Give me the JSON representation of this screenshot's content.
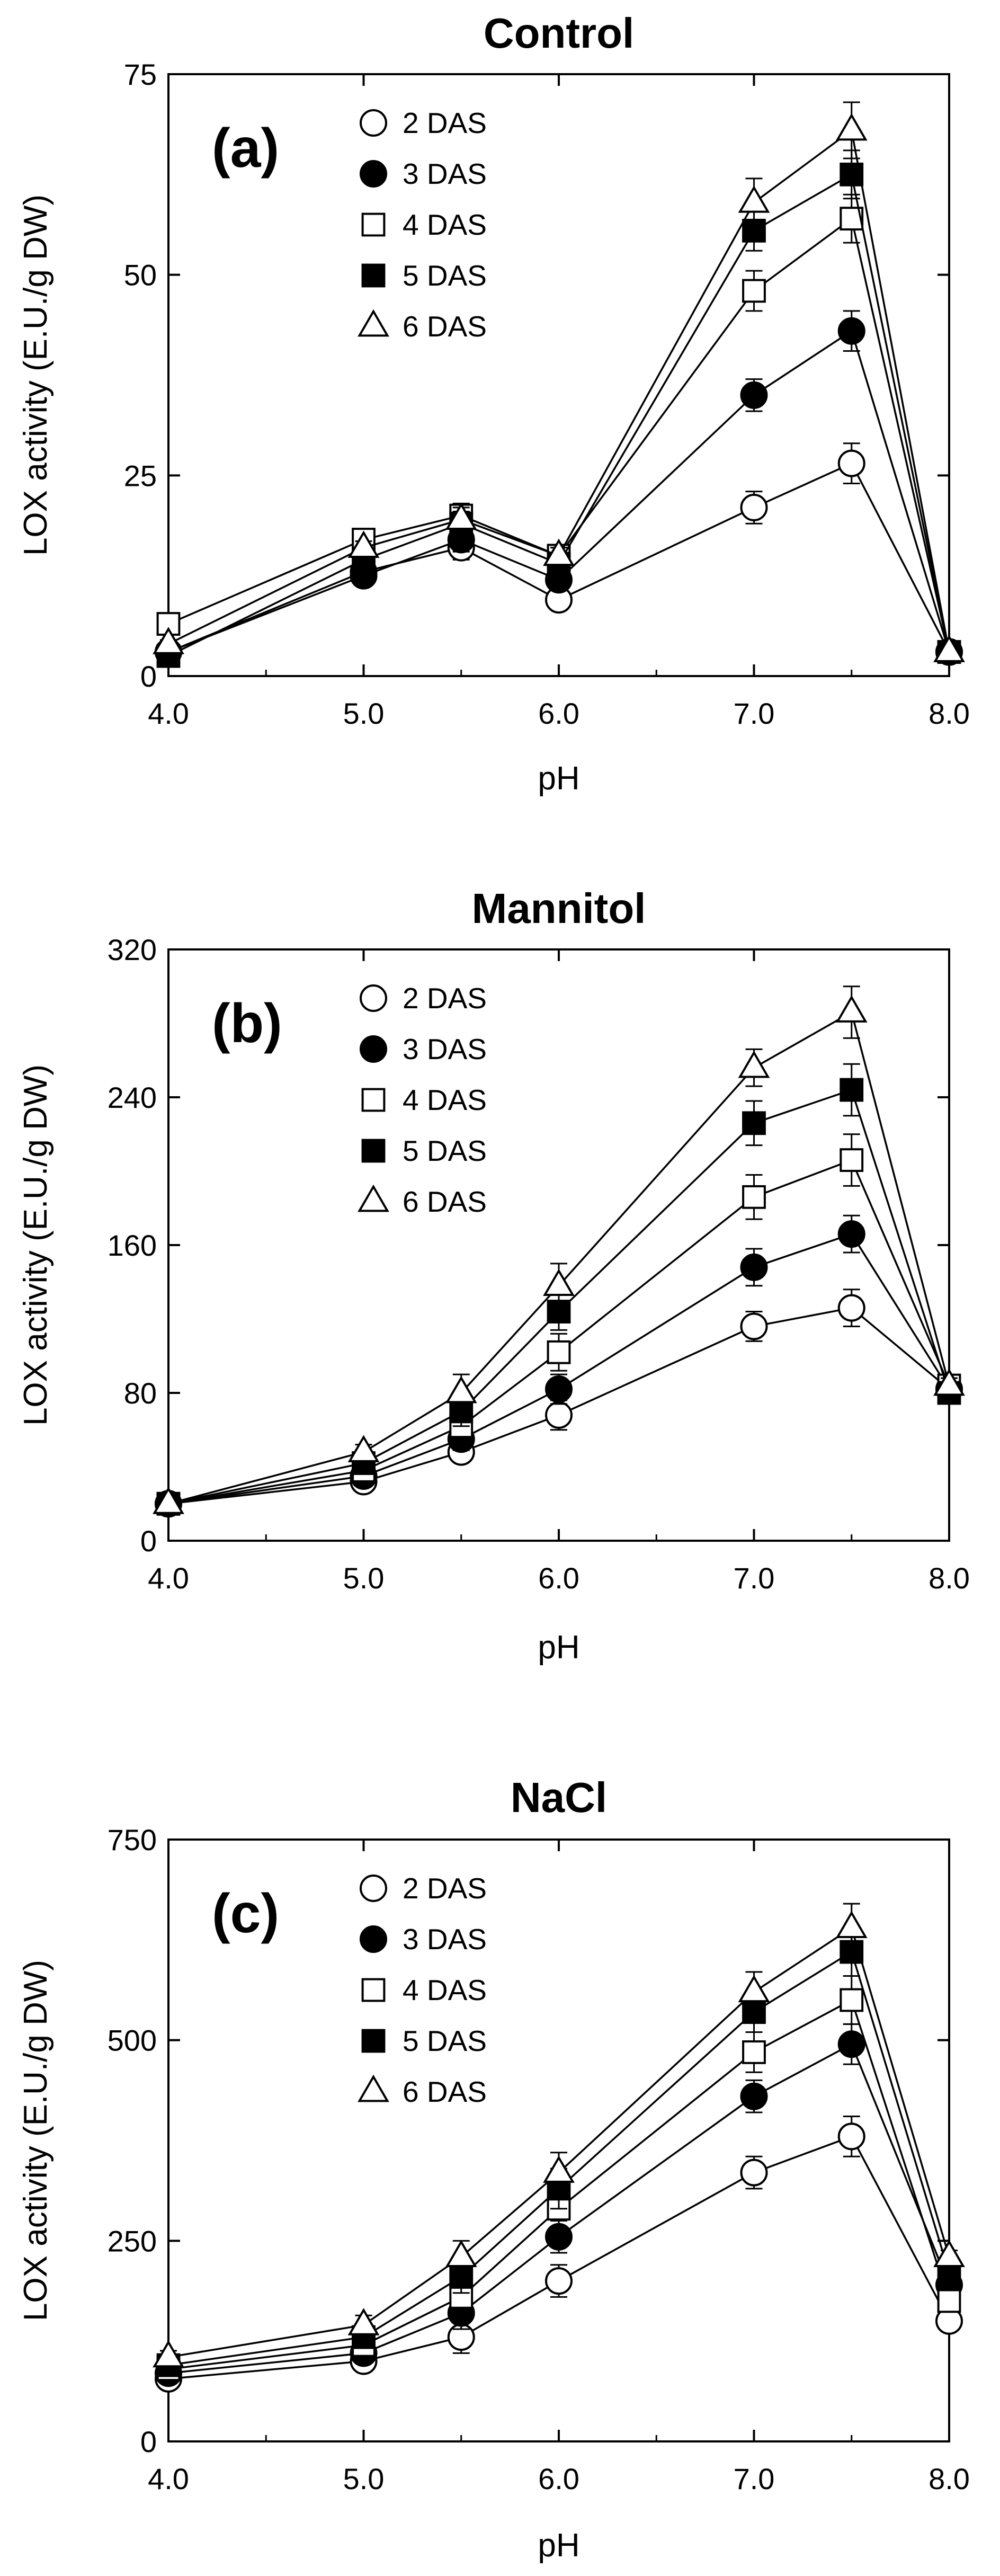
{
  "chart_data": [
    {
      "type": "line",
      "title": "Control",
      "panel_label": "(a)",
      "xlabel": "pH",
      "ylabel": "LOX activity (E.U./g DW)",
      "xlim": [
        4.0,
        8.0
      ],
      "ylim": [
        0,
        75
      ],
      "xticks": [
        4.0,
        5.0,
        6.0,
        7.0,
        8.0
      ],
      "xtick_labels": [
        "4.0",
        "5.0",
        "6.0",
        "7.0",
        "8.0"
      ],
      "yticks": [
        0,
        25,
        50,
        75
      ],
      "ytick_labels": [
        "0",
        "25",
        "50",
        "75"
      ],
      "legend_position": "top-center",
      "x": [
        4.0,
        5.0,
        5.5,
        6.0,
        7.0,
        7.5,
        8.0
      ],
      "series": [
        {
          "name": "2 DAS",
          "marker": "open-circle",
          "values": [
            3,
            13,
            16,
            9.5,
            21,
            26.5,
            3
          ],
          "errors": [
            0.5,
            0.8,
            1.5,
            1,
            2,
            2.5,
            0.5
          ]
        },
        {
          "name": "3 DAS",
          "marker": "filled-circle",
          "values": [
            3,
            12.5,
            17,
            12,
            35,
            43,
            3
          ],
          "errors": [
            0.5,
            0.8,
            1.5,
            1,
            2,
            2.5,
            0.5
          ]
        },
        {
          "name": "4 DAS",
          "marker": "open-square",
          "values": [
            6.5,
            17,
            20,
            15,
            48,
            57,
            3
          ],
          "errors": [
            0.5,
            0.8,
            1.5,
            1,
            2.5,
            3,
            0.5
          ]
        },
        {
          "name": "5 DAS",
          "marker": "filled-square",
          "values": [
            2.5,
            14.5,
            19,
            14,
            55.5,
            62.5,
            3
          ],
          "errors": [
            0.5,
            0.8,
            1.5,
            1,
            2.5,
            3,
            0.5
          ]
        },
        {
          "name": "6 DAS",
          "marker": "open-triangle",
          "values": [
            4,
            16,
            19.5,
            15,
            59,
            68,
            3
          ],
          "errors": [
            0.5,
            0.8,
            1.5,
            1,
            3,
            3.5,
            0.5
          ]
        }
      ]
    },
    {
      "type": "line",
      "title": "Mannitol",
      "panel_label": "(b)",
      "xlabel": "pH",
      "ylabel": "LOX activity (E.U./g DW)",
      "xlim": [
        4.0,
        8.0
      ],
      "ylim": [
        0,
        320
      ],
      "xticks": [
        4.0,
        5.0,
        6.0,
        7.0,
        8.0
      ],
      "xtick_labels": [
        "4.0",
        "5.0",
        "6.0",
        "7.0",
        "8.0"
      ],
      "yticks": [
        0,
        80,
        160,
        240,
        320
      ],
      "ytick_labels": [
        "0",
        "80",
        "160",
        "240",
        "320"
      ],
      "legend_position": "top-center",
      "x": [
        4.0,
        5.0,
        5.5,
        6.0,
        7.0,
        7.5,
        8.0
      ],
      "series": [
        {
          "name": "2 DAS",
          "marker": "open-circle",
          "values": [
            20,
            32,
            48,
            68,
            116,
            126,
            82
          ],
          "errors": [
            2,
            3,
            5,
            8,
            8,
            10,
            4
          ]
        },
        {
          "name": "3 DAS",
          "marker": "filled-circle",
          "values": [
            20,
            35,
            55,
            82,
            148,
            166,
            82
          ],
          "errors": [
            2,
            3,
            6,
            8,
            10,
            10,
            4
          ]
        },
        {
          "name": "4 DAS",
          "marker": "open-square",
          "values": [
            20,
            38,
            62,
            102,
            186,
            206,
            84
          ],
          "errors": [
            2,
            3,
            6,
            10,
            12,
            14,
            4
          ]
        },
        {
          "name": "5 DAS",
          "marker": "filled-square",
          "values": [
            20,
            42,
            70,
            124,
            226,
            244,
            80
          ],
          "errors": [
            2,
            3,
            8,
            10,
            12,
            14,
            4
          ]
        },
        {
          "name": "6 DAS",
          "marker": "open-triangle",
          "values": [
            20,
            48,
            80,
            138,
            256,
            286,
            84
          ],
          "errors": [
            2,
            4,
            10,
            12,
            10,
            14,
            4
          ]
        }
      ]
    },
    {
      "type": "line",
      "title": "NaCl",
      "panel_label": "(c)",
      "xlabel": "pH",
      "ylabel": "LOX activity (E.U./g DW)",
      "xlim": [
        4.0,
        8.0
      ],
      "ylim": [
        0,
        750
      ],
      "xticks": [
        4.0,
        5.0,
        6.0,
        7.0,
        8.0
      ],
      "xtick_labels": [
        "4.0",
        "5.0",
        "6.0",
        "7.0",
        "8.0"
      ],
      "yticks": [
        0,
        250,
        500,
        750
      ],
      "ytick_labels": [
        "0",
        "250",
        "500",
        "750"
      ],
      "legend_position": "top-center",
      "x": [
        4.0,
        5.0,
        5.5,
        6.0,
        7.0,
        7.5,
        8.0
      ],
      "series": [
        {
          "name": "2 DAS",
          "marker": "open-circle",
          "values": [
            78,
            100,
            130,
            200,
            335,
            380,
            150
          ],
          "errors": [
            8,
            12,
            20,
            20,
            20,
            25,
            8
          ]
        },
        {
          "name": "3 DAS",
          "marker": "filled-circle",
          "values": [
            85,
            110,
            160,
            255,
            430,
            495,
            195
          ],
          "errors": [
            8,
            12,
            20,
            20,
            20,
            25,
            8
          ]
        },
        {
          "name": "4 DAS",
          "marker": "open-square",
          "values": [
            90,
            120,
            180,
            290,
            485,
            550,
            175
          ],
          "errors": [
            8,
            12,
            20,
            25,
            25,
            30,
            8
          ]
        },
        {
          "name": "5 DAS",
          "marker": "filled-square",
          "values": [
            95,
            130,
            205,
            315,
            535,
            610,
            210
          ],
          "errors": [
            8,
            12,
            20,
            25,
            25,
            30,
            8
          ]
        },
        {
          "name": "6 DAS",
          "marker": "open-triangle",
          "values": [
            105,
            145,
            230,
            335,
            560,
            640,
            230
          ],
          "errors": [
            8,
            12,
            20,
            25,
            25,
            30,
            8
          ]
        }
      ]
    }
  ]
}
